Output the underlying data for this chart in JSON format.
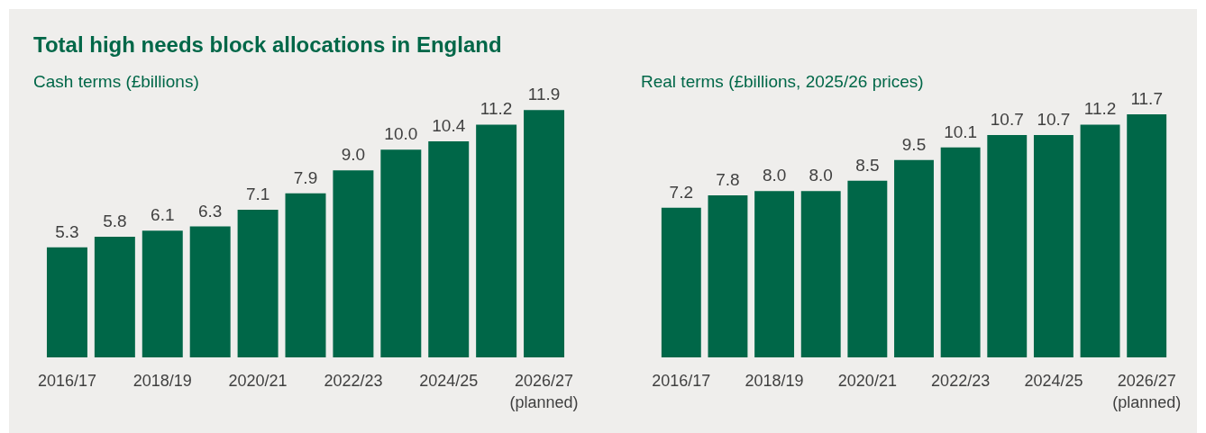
{
  "chart_data": [
    {
      "type": "bar",
      "title": "Total high needs block allocations in England",
      "subtitle": "Cash terms (£billions)",
      "categories": [
        "2016/17",
        null,
        "2018/19",
        null,
        "2020/21",
        null,
        "2022/23",
        null,
        "2024/25",
        null,
        "2026/27\n(planned)"
      ],
      "values": [
        5.3,
        5.8,
        6.1,
        6.3,
        7.1,
        7.9,
        9.0,
        10.0,
        10.4,
        11.2,
        11.9
      ],
      "value_labels": [
        "5.3",
        "5.8",
        "6.1",
        "6.3",
        "7.1",
        "7.9",
        "9.0",
        "10.0",
        "10.4",
        "11.2",
        "11.9"
      ],
      "color": "#006748",
      "grid": false
    },
    {
      "type": "bar",
      "subtitle": "Real terms (£billions, 2025/26 prices)",
      "categories": [
        "2016/17",
        null,
        "2018/19",
        null,
        "2020/21",
        null,
        "2022/23",
        null,
        "2024/25",
        null,
        "2026/27\n(planned)"
      ],
      "values": [
        7.2,
        7.8,
        8.0,
        8.0,
        8.5,
        9.5,
        10.1,
        10.7,
        10.7,
        11.2,
        11.7
      ],
      "value_labels": [
        "7.2",
        "7.8",
        "8.0",
        "8.0",
        "8.5",
        "9.5",
        "10.1",
        "10.7",
        "10.7",
        "11.2",
        "11.7"
      ],
      "color": "#006748",
      "grid": false
    }
  ]
}
